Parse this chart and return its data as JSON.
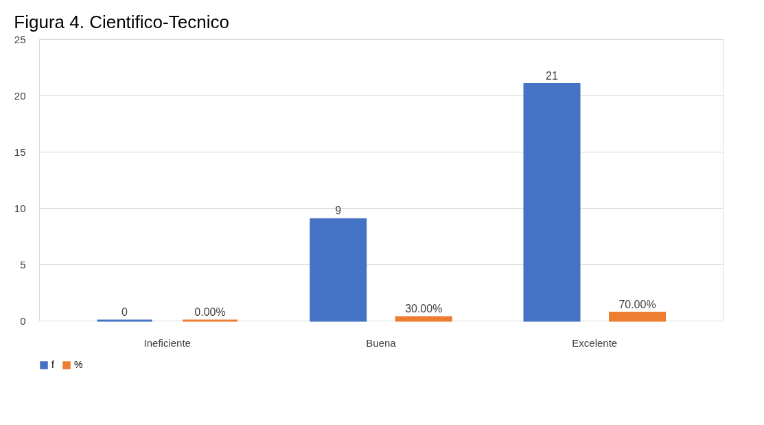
{
  "chart_data": {
    "type": "bar",
    "title": "Figura 4. Cientifico-Tecnico",
    "categories": [
      "Ineficiente",
      "Buena",
      "Excelente"
    ],
    "series": [
      {
        "name": "f",
        "color": "#4472c4",
        "values": [
          0,
          9,
          21
        ],
        "value_labels": [
          "0",
          "9",
          "21"
        ]
      },
      {
        "name": "%",
        "color": "#ed7d31",
        "values": [
          0,
          0.3,
          0.7
        ],
        "value_labels": [
          "0.00%",
          "30.00%",
          "70.00%"
        ]
      }
    ],
    "ylim": [
      0,
      25
    ],
    "yticks": [
      0,
      5,
      10,
      15,
      20,
      25
    ],
    "grid": "y",
    "legend": "bottom"
  }
}
